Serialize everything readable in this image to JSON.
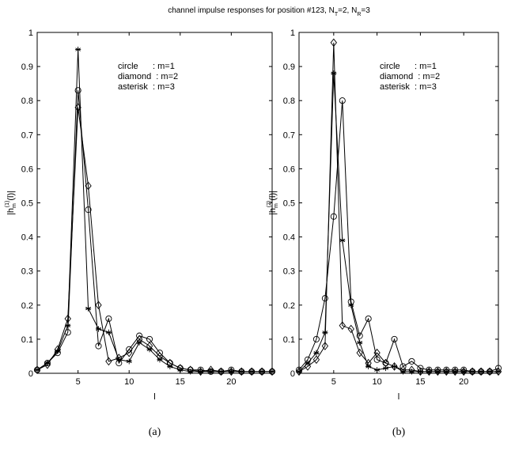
{
  "title": [
    "channel impulse responses for position #123, N",
    "T",
    "=2, N",
    "R",
    "=3"
  ],
  "chart_data": [
    {
      "type": "line",
      "caption": "(a)",
      "xlabel": "l",
      "ylabel": [
        "|h",
        "m",
        "(1)",
        "(l)|"
      ],
      "x": [
        1,
        2,
        3,
        4,
        5,
        6,
        7,
        8,
        9,
        10,
        11,
        12,
        13,
        14,
        15,
        16,
        17,
        18,
        19,
        20,
        21,
        22,
        23,
        24
      ],
      "xlim": [
        1,
        24
      ],
      "xticks": [
        5,
        10,
        15,
        20
      ],
      "ylim": [
        0,
        1
      ],
      "yticks": [
        0,
        0.1,
        0.2,
        0.3,
        0.4,
        0.5,
        0.6,
        0.7,
        0.8,
        0.9,
        1
      ],
      "series": [
        {
          "name": "circle      : m=1",
          "marker": "circle",
          "color": "#000000",
          "values": [
            0.01,
            0.03,
            0.06,
            0.12,
            0.83,
            0.48,
            0.08,
            0.16,
            0.03,
            0.07,
            0.11,
            0.1,
            0.06,
            0.03,
            0.015,
            0.01,
            0.01,
            0.005,
            0.005,
            0.01,
            0.005,
            0.005,
            0.005,
            0.005
          ]
        },
        {
          "name": "diamond  : m=2",
          "marker": "diamond",
          "color": "#000000",
          "values": [
            0.01,
            0.025,
            0.07,
            0.16,
            0.78,
            0.55,
            0.2,
            0.035,
            0.045,
            0.06,
            0.1,
            0.08,
            0.05,
            0.03,
            0.015,
            0.01,
            0.005,
            0.01,
            0.005,
            0.005,
            0.005,
            0.005,
            0.005,
            0.005
          ]
        },
        {
          "name": "asterisk  : m=3",
          "marker": "asterisk",
          "color": "#000000",
          "values": [
            0.01,
            0.03,
            0.065,
            0.14,
            0.95,
            0.19,
            0.13,
            0.12,
            0.04,
            0.035,
            0.09,
            0.07,
            0.04,
            0.02,
            0.01,
            0.005,
            0.005,
            0.005,
            0.005,
            0.005,
            0.005,
            0.005,
            0.005,
            0.005
          ]
        }
      ]
    },
    {
      "type": "line",
      "caption": "(b)",
      "xlabel": "l",
      "ylabel": [
        "|h",
        "m",
        "(2)",
        "(l)|"
      ],
      "x": [
        1,
        2,
        3,
        4,
        5,
        6,
        7,
        8,
        9,
        10,
        11,
        12,
        13,
        14,
        15,
        16,
        17,
        18,
        19,
        20,
        21,
        22,
        23,
        24
      ],
      "xlim": [
        1,
        24
      ],
      "xticks": [
        5,
        10,
        15,
        20
      ],
      "ylim": [
        0,
        1
      ],
      "yticks": [
        0,
        0.1,
        0.2,
        0.3,
        0.4,
        0.5,
        0.6,
        0.7,
        0.8,
        0.9,
        1
      ],
      "series": [
        {
          "name": "circle      : m=1",
          "marker": "circle",
          "color": "#000000",
          "values": [
            0.01,
            0.04,
            0.1,
            0.22,
            0.46,
            0.8,
            0.21,
            0.11,
            0.16,
            0.04,
            0.03,
            0.1,
            0.02,
            0.035,
            0.015,
            0.01,
            0.01,
            0.01,
            0.01,
            0.01,
            0.005,
            0.005,
            0.005,
            0.015
          ]
        },
        {
          "name": "diamond  : m=2",
          "marker": "diamond",
          "color": "#000000",
          "values": [
            0.005,
            0.02,
            0.04,
            0.08,
            0.97,
            0.14,
            0.13,
            0.06,
            0.03,
            0.06,
            0.03,
            0.02,
            0.01,
            0.01,
            0.005,
            0.005,
            0.005,
            0.005,
            0.005,
            0.005,
            0.005,
            0.005,
            0.005,
            0.005
          ]
        },
        {
          "name": "asterisk  : m=3",
          "marker": "asterisk",
          "color": "#000000",
          "values": [
            0.005,
            0.03,
            0.06,
            0.12,
            0.88,
            0.39,
            0.2,
            0.09,
            0.02,
            0.01,
            0.015,
            0.02,
            0.005,
            0.005,
            0.005,
            0.005,
            0.005,
            0.005,
            0.005,
            0.005,
            0.005,
            0.005,
            0.005,
            0.005
          ]
        }
      ]
    }
  ]
}
